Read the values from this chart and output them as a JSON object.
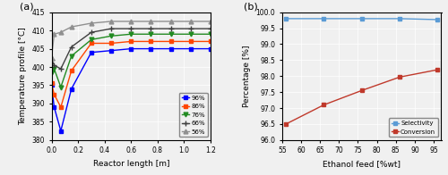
{
  "bg_color": "#F0F0F0",
  "panel_a": {
    "xlabel": "Reactor length [m]",
    "ylabel": "Temperature profile [°C]",
    "xlim": [
      0,
      1.2
    ],
    "ylim": [
      380,
      415
    ],
    "yticks": [
      380,
      385,
      390,
      395,
      400,
      405,
      410,
      415
    ],
    "xticks": [
      0,
      0.2,
      0.4,
      0.6,
      0.8,
      1.0,
      1.2
    ],
    "series": [
      {
        "label": "96%",
        "color": "#0000FF",
        "marker": "s",
        "x": [
          0.0,
          0.02,
          0.07,
          0.15,
          0.3,
          0.45,
          0.6,
          0.75,
          0.9,
          1.05,
          1.2
        ],
        "y": [
          395.0,
          389.0,
          382.5,
          394.0,
          404.0,
          404.5,
          405.0,
          405.0,
          405.0,
          405.0,
          405.0
        ]
      },
      {
        "label": "86%",
        "color": "#FF4500",
        "marker": "s",
        "x": [
          0.0,
          0.02,
          0.07,
          0.15,
          0.3,
          0.45,
          0.6,
          0.75,
          0.9,
          1.05,
          1.2
        ],
        "y": [
          395.5,
          392.5,
          389.0,
          399.0,
          406.5,
          406.5,
          407.0,
          407.0,
          407.0,
          407.0,
          407.0
        ]
      },
      {
        "label": "76%",
        "color": "#228B22",
        "marker": "v",
        "x": [
          0.0,
          0.02,
          0.07,
          0.15,
          0.3,
          0.45,
          0.6,
          0.75,
          0.9,
          1.05,
          1.2
        ],
        "y": [
          398.5,
          399.5,
          394.5,
          403.0,
          407.5,
          408.5,
          409.0,
          409.0,
          409.0,
          409.0,
          409.0
        ]
      },
      {
        "label": "66%",
        "color": "#404040",
        "marker": "+",
        "markersize": 5,
        "x": [
          0.0,
          0.02,
          0.07,
          0.15,
          0.3,
          0.45,
          0.6,
          0.75,
          0.9,
          1.05,
          1.2
        ],
        "y": [
          402.0,
          400.5,
          399.5,
          405.5,
          409.5,
          410.5,
          410.5,
          410.5,
          410.5,
          410.5,
          410.5
        ]
      },
      {
        "label": "56%",
        "color": "#909090",
        "marker": "^",
        "x": [
          0.0,
          0.02,
          0.07,
          0.15,
          0.3,
          0.45,
          0.6,
          0.75,
          0.9,
          1.05,
          1.2
        ],
        "y": [
          402.5,
          409.0,
          409.5,
          411.0,
          412.0,
          412.5,
          412.5,
          412.5,
          412.5,
          412.5,
          412.5
        ]
      }
    ]
  },
  "panel_b": {
    "xlabel": "Ethanol feed [%wt]",
    "ylabel": "Percentage [%]",
    "xlim": [
      55,
      97
    ],
    "ylim": [
      96,
      100
    ],
    "xticks": [
      55,
      60,
      65,
      70,
      75,
      80,
      85,
      90,
      95
    ],
    "yticks": [
      96.0,
      96.5,
      97.0,
      97.5,
      98.0,
      98.5,
      99.0,
      99.5,
      100.0
    ],
    "series": [
      {
        "label": "Selectivity",
        "color": "#5B9BD5",
        "marker": "s",
        "x": [
          56,
          66,
          76,
          86,
          96
        ],
        "y": [
          99.8,
          99.8,
          99.8,
          99.8,
          99.77
        ]
      },
      {
        "label": "Conversion",
        "color": "#C0392B",
        "marker": "s",
        "x": [
          56,
          66,
          76,
          86,
          96
        ],
        "y": [
          96.5,
          97.1,
          97.55,
          97.97,
          98.2
        ]
      }
    ]
  }
}
